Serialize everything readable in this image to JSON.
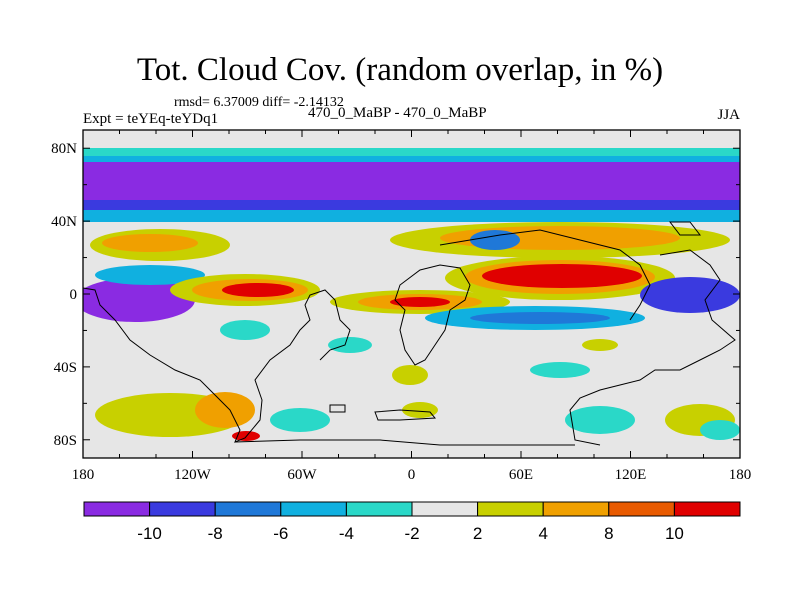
{
  "chart_data": {
    "type": "heatmap",
    "title": "Tot. Cloud Cov. (random overlap, in %)",
    "stats_line": "rmsd= 6.37009 diff= -2.14132",
    "left_label": "Expt = teYEq-teYDq1",
    "center_label": "470_0_MaBP - 470_0_MaBP",
    "right_label": "JJA",
    "x_ticks": [
      "180",
      "120W",
      "60W",
      "0",
      "60E",
      "120E",
      "180"
    ],
    "y_ticks": [
      "80N",
      "40N",
      "0",
      "40S",
      "80S"
    ],
    "xlim": [
      -180,
      180
    ],
    "ylim": [
      -90,
      90
    ],
    "colorbar": {
      "labels": [
        "-10",
        "-8",
        "-6",
        "-4",
        "-2",
        "2",
        "4",
        "8",
        "10"
      ],
      "colors": [
        "#8a2be2",
        "#3a3adf",
        "#1f78d8",
        "#10b0e0",
        "#2ad8c8",
        "#e6e6e6",
        "#c8d000",
        "#f0a000",
        "#e85a00",
        "#e00000"
      ]
    }
  }
}
